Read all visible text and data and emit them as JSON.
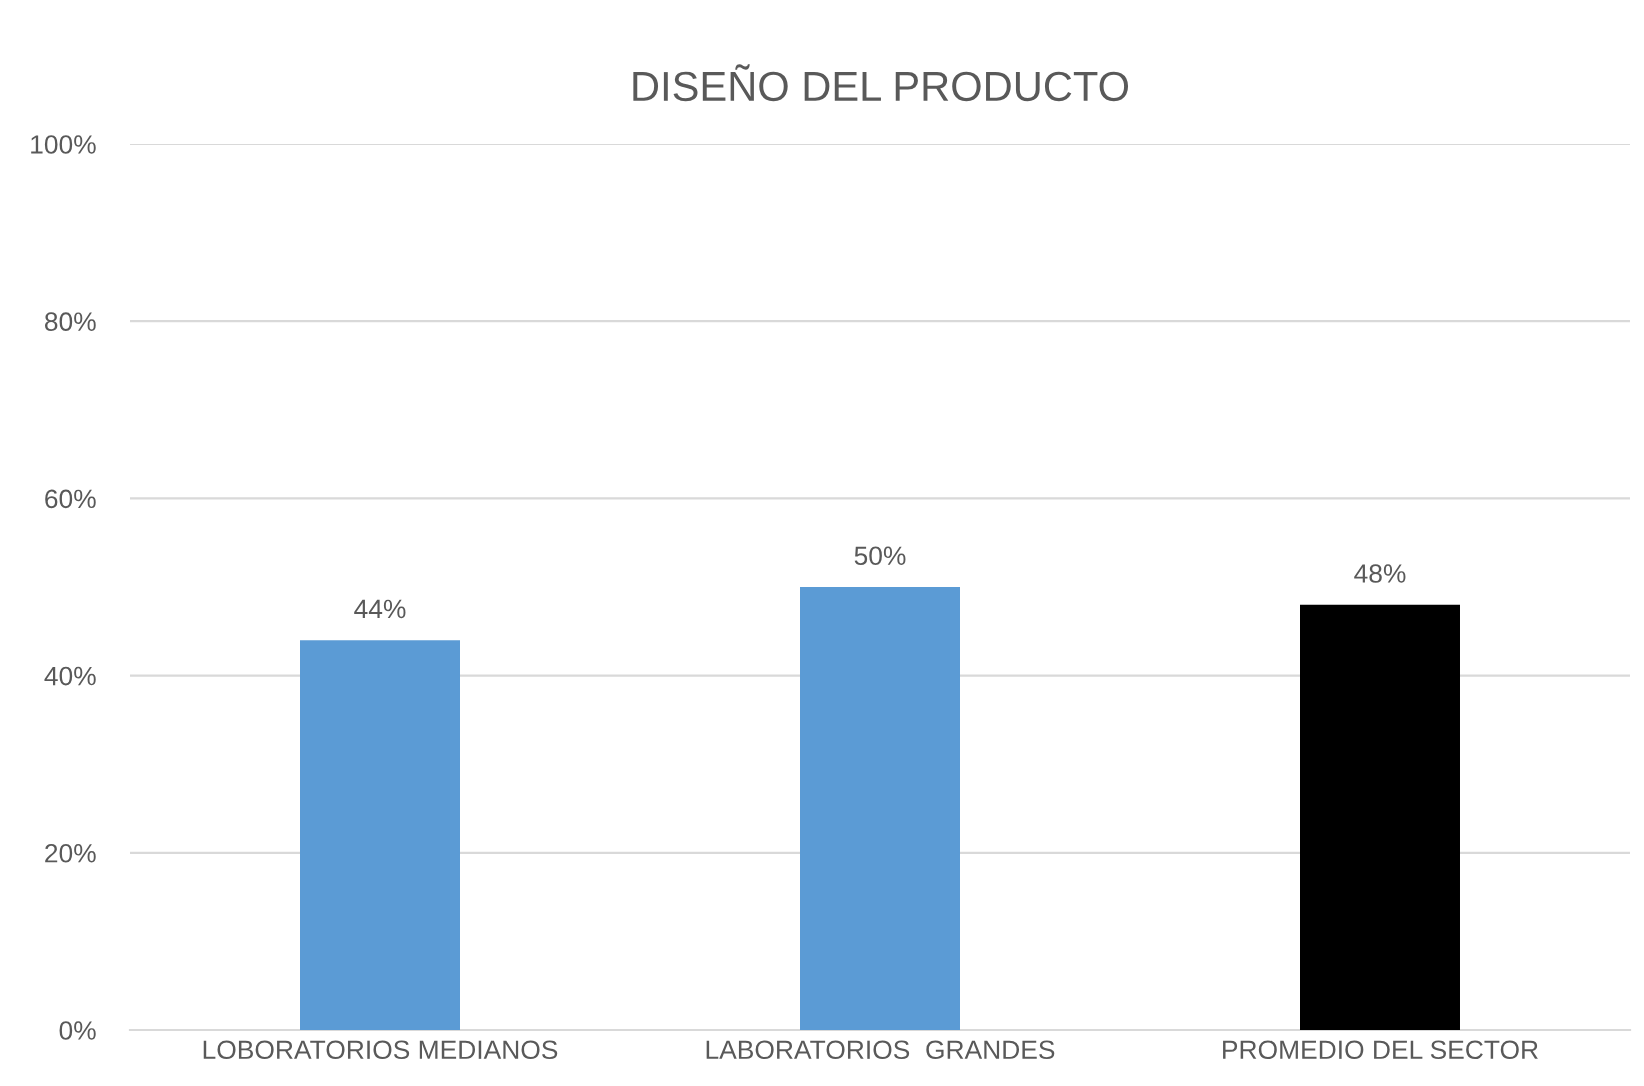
{
  "chart_data": {
    "type": "bar",
    "title": "DISEÑO DEL PRODUCTO",
    "categories": [
      "LOBORATORIOS MEDIANOS",
      "LABORATORIOS  GRANDES",
      "PROMEDIO DEL SECTOR"
    ],
    "values": [
      44,
      50,
      48
    ],
    "colors": [
      "#5b9bd5",
      "#5b9bd5",
      "#000000"
    ],
    "value_labels": [
      "44%",
      "50%",
      "48%"
    ],
    "ylim": [
      0,
      100
    ],
    "yticks": [
      {
        "value": 0,
        "label": "0%"
      },
      {
        "value": 20,
        "label": "20%"
      },
      {
        "value": 40,
        "label": "40%"
      },
      {
        "value": 60,
        "label": "60%"
      },
      {
        "value": 80,
        "label": "80%"
      },
      {
        "value": 100,
        "label": "100%"
      }
    ],
    "grid": "y",
    "legend": false
  }
}
